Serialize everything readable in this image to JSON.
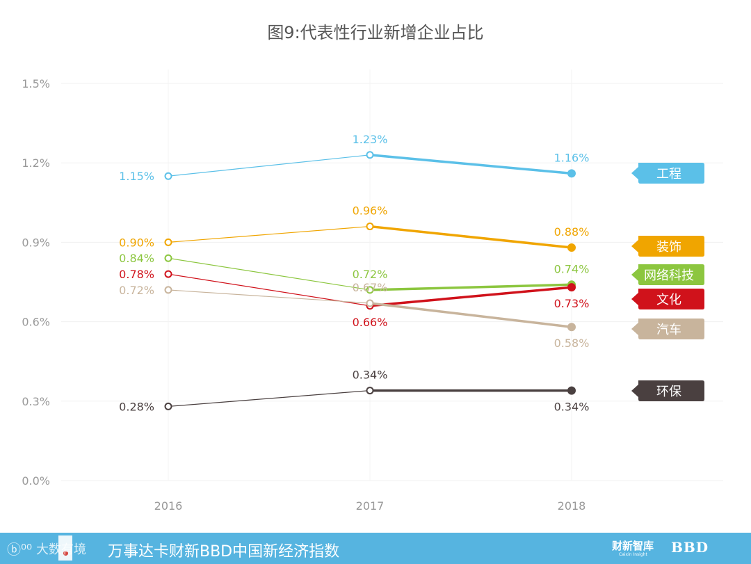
{
  "chart_data": {
    "type": "line",
    "title": "图9:代表性行业新增企业占比",
    "categories": [
      "2016",
      "2017",
      "2018"
    ],
    "ylim": [
      0,
      1.5
    ],
    "yticks": [
      0,
      0.3,
      0.6,
      0.9,
      1.2,
      1.5
    ],
    "ytick_labels": [
      "0.0%",
      "0.3%",
      "0.6%",
      "0.9%",
      "1.2%",
      "1.5%"
    ],
    "grid": true,
    "legend_position": "right",
    "series": [
      {
        "name": "工程",
        "color": "#5bc0e8",
        "values": [
          1.15,
          1.23,
          1.16
        ],
        "labels": [
          "1.15%",
          "1.23%",
          "1.16%"
        ],
        "label_pos": [
          "left",
          "above",
          "above"
        ]
      },
      {
        "name": "装饰",
        "color": "#f0a500",
        "values": [
          0.9,
          0.96,
          0.88
        ],
        "labels": [
          "0.90%",
          "0.96%",
          "0.88%"
        ],
        "label_pos": [
          "left",
          "above",
          "above"
        ]
      },
      {
        "name": "网络科技",
        "color": "#8cc63f",
        "values": [
          0.84,
          0.72,
          0.74
        ],
        "labels": [
          "0.84%",
          "0.72%",
          "0.74%"
        ],
        "label_pos": [
          "left",
          "above",
          "above"
        ]
      },
      {
        "name": "文化",
        "color": "#d0121b",
        "values": [
          0.78,
          0.66,
          0.73
        ],
        "labels": [
          "0.78%",
          "0.66%",
          "0.73%"
        ],
        "label_pos": [
          "left",
          "below",
          "below"
        ]
      },
      {
        "name": "汽车",
        "color": "#c8b49c",
        "values": [
          0.72,
          0.67,
          0.58
        ],
        "labels": [
          "0.72%",
          "0.67%",
          "0.58%"
        ],
        "label_pos": [
          "left",
          "above",
          "below"
        ]
      },
      {
        "name": "环保",
        "color": "#4a4040",
        "values": [
          0.28,
          0.34,
          0.34
        ],
        "labels": [
          "0.28%",
          "0.34%",
          "0.34%"
        ],
        "label_pos": [
          "left",
          "above",
          "below"
        ]
      }
    ]
  },
  "footer": {
    "logo_left": "大数有境",
    "slogan": "万事达卡财新BBD中国新经济指数",
    "brand1": "财新智库",
    "brand1_sub": "Caixin Insight",
    "brand2": "BBD"
  }
}
